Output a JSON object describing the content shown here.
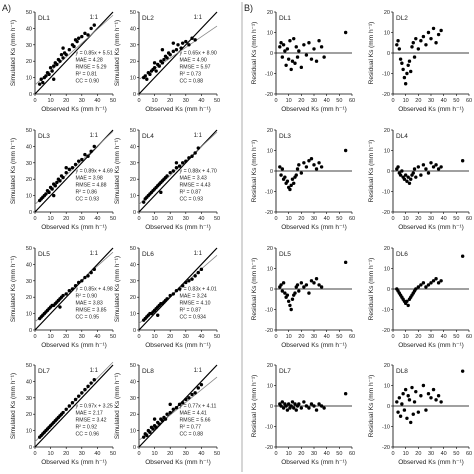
{
  "panel_labels": {
    "a": "A)",
    "b": "B)"
  },
  "reg_text": {
    "x_label": "Observed Ks (mm h⁻¹)",
    "y_label": "Simulated Ks (mm h⁻¹)",
    "ratio_label": "1:1"
  },
  "res_text": {
    "x_label": "Observed Ks (mm h⁻¹)",
    "y_label": "Residual Ks (mm h⁻¹)"
  },
  "chart_data": [
    {
      "panel": "A",
      "name": "DL1",
      "type": "scatter",
      "stats": [
        "y = 0.85x + 5.51",
        "MAE = 4.28",
        "RMSE = 5.29",
        "R² = 0.81",
        "CC = 0.90"
      ],
      "xlim": [
        0,
        50
      ],
      "ylim": [
        0,
        50
      ],
      "xticks": [
        0,
        10,
        20,
        30,
        40,
        50
      ],
      "yticks": [
        0,
        10,
        20,
        30,
        40,
        50
      ],
      "x": [
        3,
        4,
        5,
        6,
        7,
        8,
        9,
        10,
        11,
        12,
        13,
        14,
        15,
        16,
        17,
        18,
        19,
        20,
        22,
        24,
        25,
        27,
        28,
        30,
        32,
        34,
        36,
        38,
        12,
        18,
        26
      ],
      "y": [
        6,
        9,
        7,
        10,
        11,
        13,
        12,
        16,
        14,
        17,
        19,
        18,
        21,
        20,
        24,
        22,
        25,
        24,
        27,
        30,
        29,
        32,
        34,
        35,
        37,
        36,
        40,
        42,
        9,
        28,
        33
      ]
    },
    {
      "panel": "A",
      "name": "DL2",
      "type": "scatter",
      "stats": [
        "y = 0.65x + 8.90",
        "MAE = 4.90",
        "RMSE = 5.97",
        "R² = 0.73",
        "CC = 0.88"
      ],
      "xlim": [
        0,
        50
      ],
      "ylim": [
        0,
        50
      ],
      "xticks": [
        0,
        10,
        20,
        30,
        40,
        50
      ],
      "yticks": [
        0,
        10,
        20,
        30,
        40,
        50
      ],
      "x": [
        3,
        4,
        5,
        6,
        7,
        8,
        9,
        10,
        11,
        12,
        13,
        14,
        15,
        16,
        17,
        18,
        19,
        20,
        22,
        24,
        25,
        27,
        28,
        30,
        32,
        34,
        36,
        10,
        15,
        22
      ],
      "y": [
        10,
        11,
        9,
        13,
        12,
        14,
        15,
        16,
        14,
        18,
        17,
        20,
        19,
        21,
        23,
        22,
        25,
        24,
        26,
        27,
        30,
        28,
        31,
        32,
        30,
        34,
        33,
        19,
        27,
        31
      ]
    },
    {
      "panel": "A",
      "name": "DL3",
      "type": "scatter",
      "stats": [
        "y = 0.89x + 4.69",
        "MAE = 3.98",
        "RMSE = 4.88",
        "R² = 0.86",
        "CC = 0.93"
      ],
      "xlim": [
        0,
        50
      ],
      "ylim": [
        0,
        50
      ],
      "xticks": [
        0,
        10,
        20,
        30,
        40,
        50
      ],
      "yticks": [
        0,
        10,
        20,
        30,
        40,
        50
      ],
      "x": [
        3,
        4,
        5,
        6,
        7,
        8,
        9,
        10,
        11,
        12,
        13,
        14,
        15,
        16,
        17,
        18,
        20,
        22,
        24,
        26,
        28,
        30,
        32,
        34,
        36,
        38,
        12,
        20
      ],
      "y": [
        7,
        8,
        9,
        10,
        11,
        13,
        12,
        15,
        14,
        17,
        16,
        18,
        20,
        19,
        22,
        21,
        24,
        26,
        27,
        29,
        31,
        32,
        35,
        34,
        37,
        40,
        10,
        27
      ]
    },
    {
      "panel": "A",
      "name": "DL4",
      "type": "scatter",
      "stats": [
        "y = 0.88x + 4.70",
        "MAE = 3.43",
        "RMSE = 4.43",
        "R² = 0.87",
        "CC = 0.93"
      ],
      "xlim": [
        0,
        50
      ],
      "ylim": [
        0,
        50
      ],
      "xticks": [
        0,
        10,
        20,
        30,
        40,
        50
      ],
      "yticks": [
        0,
        10,
        20,
        30,
        40,
        50
      ],
      "x": [
        3,
        4,
        5,
        6,
        7,
        8,
        9,
        10,
        11,
        12,
        13,
        14,
        15,
        16,
        17,
        18,
        20,
        22,
        24,
        26,
        28,
        30,
        32,
        34,
        36,
        38,
        14,
        24
      ],
      "y": [
        6,
        8,
        9,
        10,
        11,
        12,
        13,
        14,
        15,
        16,
        17,
        18,
        19,
        20,
        21,
        22,
        24,
        25,
        27,
        28,
        30,
        31,
        33,
        34,
        36,
        39,
        12,
        30
      ]
    },
    {
      "panel": "A",
      "name": "DL5",
      "type": "scatter",
      "stats": [
        "y = 0.85x + 4.98",
        "R² = 0.90",
        "MAE = 3.83",
        "RMSE = 3.85",
        "CC = 0.95"
      ],
      "xlim": [
        0,
        50
      ],
      "ylim": [
        0,
        50
      ],
      "xticks": [
        0,
        10,
        20,
        30,
        40,
        50
      ],
      "yticks": [
        0,
        10,
        20,
        30,
        40,
        50
      ],
      "x": [
        3,
        4,
        5,
        6,
        7,
        8,
        9,
        10,
        11,
        12,
        13,
        14,
        15,
        16,
        17,
        18,
        20,
        22,
        24,
        26,
        28,
        30,
        32,
        34,
        36,
        38,
        16
      ],
      "y": [
        7,
        8,
        9,
        10,
        11,
        12,
        13,
        14,
        15,
        15,
        16,
        17,
        18,
        19,
        20,
        21,
        22,
        24,
        25,
        27,
        29,
        30,
        32,
        33,
        35,
        37,
        14
      ]
    },
    {
      "panel": "A",
      "name": "DL6",
      "type": "scatter",
      "stats": [
        "y = 0.83x + 4.01",
        "MAE = 3.24",
        "RMSE = 4.10",
        "R² = 0.87",
        "CC = 0.934"
      ],
      "xlim": [
        0,
        50
      ],
      "ylim": [
        0,
        50
      ],
      "xticks": [
        0,
        10,
        20,
        30,
        40,
        50
      ],
      "yticks": [
        0,
        10,
        20,
        30,
        40,
        50
      ],
      "x": [
        3,
        4,
        5,
        6,
        7,
        8,
        9,
        10,
        11,
        12,
        13,
        14,
        15,
        16,
        17,
        18,
        20,
        22,
        24,
        26,
        28,
        30,
        32,
        34,
        36,
        38,
        40,
        12
      ],
      "y": [
        6,
        7,
        8,
        9,
        10,
        10,
        11,
        12,
        13,
        14,
        15,
        16,
        16,
        17,
        18,
        19,
        21,
        22,
        24,
        25,
        27,
        29,
        30,
        31,
        33,
        35,
        37,
        9
      ]
    },
    {
      "panel": "A",
      "name": "DL7",
      "type": "scatter",
      "stats": [
        "y = 0.97x + 3.25",
        "MAE = 2.17",
        "RMSE = 3.42",
        "R² = 0.92",
        "CC = 0.96"
      ],
      "xlim": [
        0,
        50
      ],
      "ylim": [
        0,
        50
      ],
      "xticks": [
        0,
        10,
        20,
        30,
        40,
        50
      ],
      "yticks": [
        0,
        10,
        20,
        30,
        40,
        50
      ],
      "x": [
        3,
        4,
        5,
        6,
        7,
        8,
        9,
        10,
        11,
        12,
        13,
        14,
        15,
        16,
        17,
        18,
        20,
        22,
        24,
        26,
        28,
        30,
        32,
        34,
        36,
        38
      ],
      "y": [
        6,
        7,
        8,
        9,
        10,
        11,
        12,
        13,
        14,
        15,
        16,
        17,
        18,
        19,
        20,
        21,
        23,
        25,
        27,
        29,
        31,
        33,
        35,
        37,
        39,
        41
      ]
    },
    {
      "panel": "A",
      "name": "DL8",
      "type": "scatter",
      "stats": [
        "y = 0.77x + 4.11",
        "MAE = 4.41",
        "RMSE = 5.66",
        "R² = 0.77",
        "CC = 0.88"
      ],
      "xlim": [
        0,
        50
      ],
      "ylim": [
        0,
        50
      ],
      "xticks": [
        0,
        10,
        20,
        30,
        40,
        50
      ],
      "yticks": [
        0,
        10,
        20,
        30,
        40,
        50
      ],
      "x": [
        3,
        4,
        5,
        6,
        7,
        8,
        9,
        10,
        11,
        12,
        13,
        14,
        15,
        16,
        17,
        18,
        20,
        22,
        24,
        26,
        28,
        30,
        32,
        34,
        36,
        38,
        40,
        10,
        20
      ],
      "y": [
        6,
        8,
        7,
        10,
        9,
        12,
        11,
        13,
        12,
        15,
        14,
        17,
        16,
        18,
        17,
        20,
        21,
        23,
        24,
        26,
        27,
        29,
        30,
        32,
        33,
        36,
        38,
        17,
        26
      ]
    },
    {
      "panel": "B",
      "name": "DL1",
      "type": "scatter",
      "xlim": [
        0,
        60
      ],
      "ylim": [
        -20,
        20
      ],
      "xticks": [
        0,
        10,
        20,
        30,
        40,
        50,
        60
      ],
      "yticks": [
        -20,
        -10,
        0,
        10,
        20
      ],
      "x": [
        3,
        4,
        5,
        6,
        7,
        8,
        9,
        10,
        11,
        12,
        13,
        14,
        15,
        16,
        17,
        18,
        20,
        22,
        24,
        26,
        28,
        30,
        32,
        34,
        36,
        38,
        55
      ],
      "y": [
        3,
        5,
        -2,
        4,
        1,
        -6,
        2,
        -3,
        6,
        -8,
        -4,
        7,
        -5,
        3,
        -2,
        1,
        -7,
        4,
        -1,
        5,
        -3,
        2,
        -4,
        6,
        3,
        -2,
        10
      ]
    },
    {
      "panel": "B",
      "name": "DL2",
      "type": "scatter",
      "xlim": [
        0,
        60
      ],
      "ylim": [
        -20,
        20
      ],
      "xticks": [
        0,
        10,
        20,
        30,
        40,
        50,
        60
      ],
      "yticks": [
        -20,
        -10,
        0,
        10,
        20
      ],
      "x": [
        3,
        4,
        5,
        6,
        7,
        8,
        9,
        10,
        11,
        12,
        13,
        14,
        15,
        16,
        17,
        18,
        20,
        22,
        24,
        26,
        28,
        30,
        32,
        34,
        36,
        38
      ],
      "y": [
        4,
        6,
        2,
        -3,
        -5,
        -8,
        -12,
        -15,
        -10,
        -6,
        -4,
        -9,
        3,
        5,
        -2,
        7,
        2,
        6,
        8,
        4,
        10,
        7,
        12,
        5,
        9,
        11
      ]
    },
    {
      "panel": "B",
      "name": "DL3",
      "type": "scatter",
      "xlim": [
        0,
        60
      ],
      "ylim": [
        -20,
        20
      ],
      "xticks": [
        0,
        10,
        20,
        30,
        40,
        50,
        60
      ],
      "yticks": [
        -20,
        -10,
        0,
        10,
        20
      ],
      "x": [
        3,
        4,
        5,
        6,
        7,
        8,
        9,
        10,
        11,
        12,
        13,
        14,
        15,
        16,
        17,
        18,
        20,
        22,
        24,
        26,
        28,
        30,
        32,
        34,
        36,
        55
      ],
      "y": [
        2,
        -2,
        1,
        -4,
        -3,
        -6,
        -5,
        -8,
        -9,
        -7,
        -4,
        -6,
        -3,
        -2,
        1,
        3,
        -1,
        4,
        2,
        5,
        6,
        3,
        1,
        4,
        2,
        10
      ]
    },
    {
      "panel": "B",
      "name": "DL4",
      "type": "scatter",
      "xlim": [
        0,
        60
      ],
      "ylim": [
        -20,
        20
      ],
      "xticks": [
        0,
        10,
        20,
        30,
        40,
        50,
        60
      ],
      "yticks": [
        -20,
        -10,
        0,
        10,
        20
      ],
      "x": [
        3,
        4,
        5,
        6,
        7,
        8,
        9,
        10,
        11,
        12,
        13,
        14,
        15,
        16,
        17,
        18,
        20,
        22,
        24,
        26,
        28,
        30,
        32,
        34,
        36,
        38,
        55
      ],
      "y": [
        1,
        2,
        -1,
        -2,
        0,
        -3,
        -4,
        -2,
        -5,
        -3,
        -6,
        -4,
        -2,
        -1,
        1,
        -3,
        2,
        -2,
        3,
        1,
        -1,
        4,
        2,
        3,
        1,
        2,
        5
      ]
    },
    {
      "panel": "B",
      "name": "DL5",
      "type": "scatter",
      "xlim": [
        0,
        60
      ],
      "ylim": [
        -20,
        20
      ],
      "xticks": [
        0,
        10,
        20,
        30,
        40,
        50,
        60
      ],
      "yticks": [
        -20,
        -10,
        0,
        10,
        20
      ],
      "x": [
        3,
        4,
        5,
        6,
        7,
        8,
        9,
        10,
        11,
        12,
        13,
        14,
        15,
        16,
        17,
        18,
        20,
        22,
        24,
        26,
        28,
        30,
        32,
        34,
        36,
        55
      ],
      "y": [
        1,
        2,
        -1,
        3,
        -2,
        -4,
        -3,
        -6,
        -8,
        -10,
        -5,
        -3,
        -2,
        1,
        2,
        -1,
        3,
        1,
        2,
        -2,
        4,
        3,
        5,
        2,
        1,
        13
      ]
    },
    {
      "panel": "B",
      "name": "DL6",
      "type": "scatter",
      "xlim": [
        0,
        60
      ],
      "ylim": [
        -20,
        20
      ],
      "xticks": [
        0,
        10,
        20,
        30,
        40,
        50,
        60
      ],
      "yticks": [
        -20,
        -10,
        0,
        10,
        20
      ],
      "x": [
        3,
        4,
        5,
        6,
        7,
        8,
        9,
        10,
        11,
        12,
        13,
        14,
        15,
        16,
        17,
        18,
        20,
        22,
        24,
        26,
        28,
        30,
        32,
        34,
        36,
        38,
        55
      ],
      "y": [
        0,
        -1,
        -2,
        -3,
        -4,
        -5,
        -6,
        -7,
        -6,
        -8,
        -5,
        -4,
        -3,
        -2,
        -1,
        0,
        1,
        2,
        3,
        1,
        2,
        3,
        4,
        5,
        3,
        4,
        16
      ]
    },
    {
      "panel": "B",
      "name": "DL7",
      "type": "scatter",
      "xlim": [
        0,
        60
      ],
      "ylim": [
        -20,
        20
      ],
      "xticks": [
        0,
        10,
        20,
        30,
        40,
        50,
        60
      ],
      "yticks": [
        -20,
        -10,
        0,
        10,
        20
      ],
      "x": [
        3,
        4,
        5,
        6,
        7,
        8,
        9,
        10,
        11,
        12,
        13,
        14,
        15,
        16,
        17,
        18,
        20,
        22,
        24,
        26,
        28,
        30,
        32,
        34,
        36,
        38,
        55
      ],
      "y": [
        1,
        0,
        2,
        -1,
        1,
        0,
        -2,
        1,
        -1,
        0,
        2,
        -1,
        1,
        -2,
        0,
        1,
        -1,
        2,
        0,
        -1,
        1,
        0,
        -2,
        1,
        0,
        -1,
        6
      ]
    },
    {
      "panel": "B",
      "name": "DL8",
      "type": "scatter",
      "xlim": [
        0,
        60
      ],
      "ylim": [
        -20,
        20
      ],
      "xticks": [
        0,
        10,
        20,
        30,
        40,
        50,
        60
      ],
      "yticks": [
        -20,
        -10,
        0,
        10,
        20
      ],
      "x": [
        3,
        4,
        5,
        6,
        7,
        8,
        9,
        10,
        11,
        12,
        13,
        14,
        15,
        16,
        17,
        18,
        20,
        22,
        24,
        26,
        28,
        30,
        32,
        34,
        36,
        38,
        55
      ],
      "y": [
        2,
        -3,
        4,
        -5,
        1,
        6,
        -2,
        8,
        -6,
        5,
        3,
        -8,
        9,
        -4,
        2,
        7,
        -3,
        5,
        10,
        -2,
        6,
        4,
        8,
        3,
        5,
        2,
        17
      ]
    }
  ]
}
